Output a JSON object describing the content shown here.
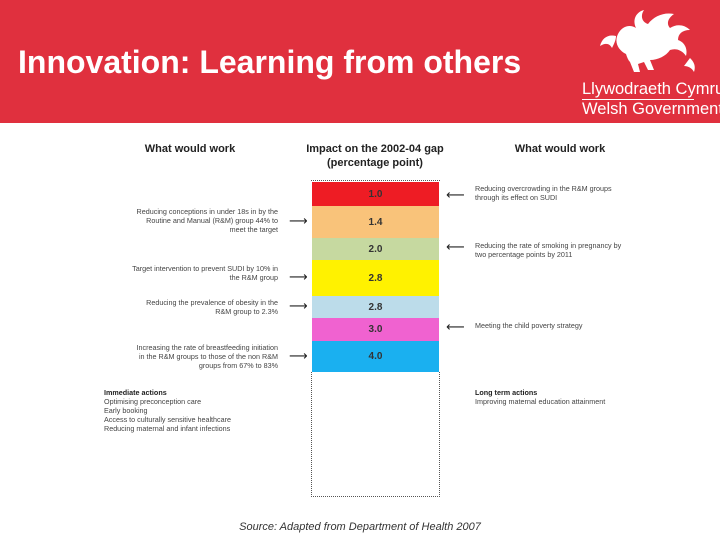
{
  "header": {
    "title": "Innovation: Learning from others",
    "gov_line1": "Llywodraeth Cymru",
    "gov_line2": "Welsh Government",
    "color": "#e0303e",
    "logo_icon": "welsh-dragon-icon"
  },
  "columns": {
    "left_heading": "What would work",
    "center_heading_1": "Impact on the 2002-04 gap",
    "center_heading_2": "(percentage point)",
    "right_heading": "What would work"
  },
  "segments": [
    {
      "value": "1.0",
      "color": "#ee1c24"
    },
    {
      "value": "1.4",
      "color": "#f9c37a"
    },
    {
      "value": "2.0",
      "color": "#c6d9a0"
    },
    {
      "value": "2.8",
      "color": "#fff200"
    },
    {
      "value": "2.8",
      "color": "#bcdcea"
    },
    {
      "value": "3.0",
      "color": "#f062d0"
    },
    {
      "value": "4.0",
      "color": "#1ab0f0"
    }
  ],
  "left_items": [
    {
      "line1": "Reducing conceptions in under 18s in by the",
      "line2": "Routine and Manual (R&M) group 44% to",
      "line3": "meet the target"
    },
    {
      "line1": "Target intervention to prevent SUDI by 10% in",
      "line2": "the R&M group"
    },
    {
      "line1": "Reducing the prevalence of obesity in the",
      "line2": "R&M group to 2.3%"
    },
    {
      "line1": "Increasing the rate of breastfeeding initiation",
      "line2": "in the R&M groups to those of the non R&M",
      "line3": "groups from 67% to 83%"
    }
  ],
  "right_items": [
    {
      "line1": "Reducing overcrowding in the R&M groups",
      "line2": "through its effect on SUDI"
    },
    {
      "line1": "Reducing the rate of smoking in pregnancy by",
      "line2": "two percentage points by 2011"
    },
    {
      "line1": "Meeting the child poverty strategy"
    }
  ],
  "immediate": {
    "heading": "Immediate actions",
    "items": [
      "Optimising preconception care",
      "Early booking",
      "Access to culturally sensitive healthcare",
      "Reducing maternal and infant infections"
    ]
  },
  "long_term": {
    "heading": "Long term actions",
    "items": [
      "Improving maternal education attainment"
    ]
  },
  "source": "Source: Adapted from Department of Health 2007"
}
